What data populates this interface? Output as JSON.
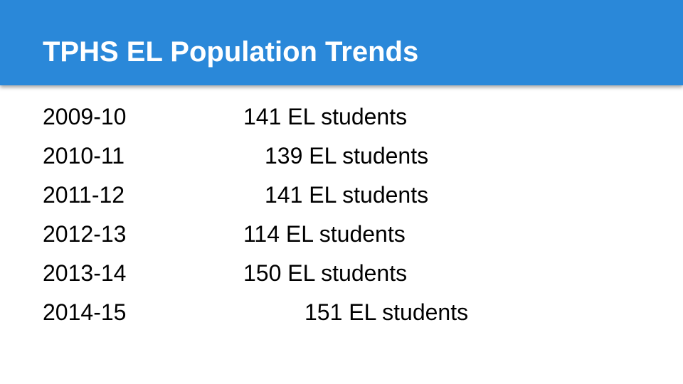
{
  "header": {
    "title": "TPHS EL Population Trends"
  },
  "rows": [
    [
      "2009-10",
      "141 EL students"
    ],
    [
      "2010-11",
      "139 EL students"
    ],
    [
      "2011-12",
      "141 EL students"
    ],
    [
      "2012-13",
      "114 EL students"
    ],
    [
      "2013-14",
      "150 EL students"
    ],
    [
      "2014-15",
      "151 EL students"
    ]
  ]
}
